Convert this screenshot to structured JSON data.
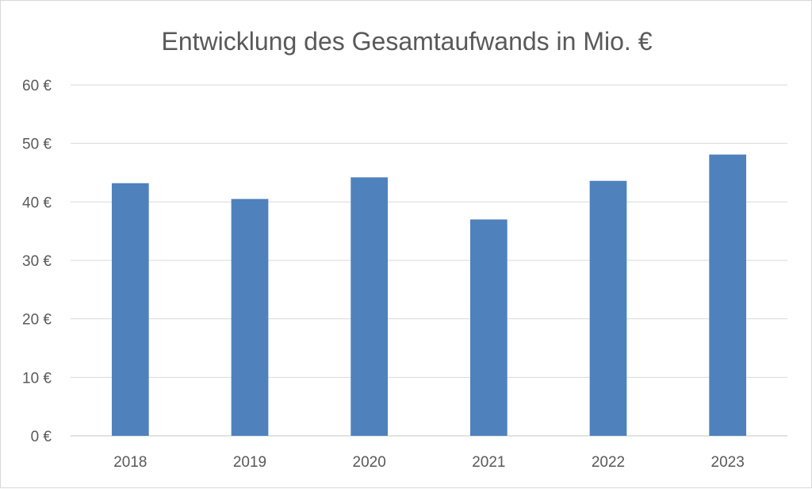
{
  "chart_data": {
    "type": "bar",
    "title": "Entwicklung des Gesamtaufwands in Mio. €",
    "categories": [
      "2018",
      "2019",
      "2020",
      "2021",
      "2022",
      "2023"
    ],
    "values": [
      43.2,
      40.5,
      44.2,
      37.0,
      43.6,
      48.1
    ],
    "ylim": [
      0,
      60
    ],
    "y_tick_step": 10,
    "y_tick_suffix": " €",
    "xlabel": "",
    "ylabel": "",
    "grid": true,
    "legend": "none",
    "colors": {
      "bar": "#4f81bd",
      "grid": "#d9d9d9",
      "axis": "#d9d9d9",
      "text": "#595959"
    }
  }
}
